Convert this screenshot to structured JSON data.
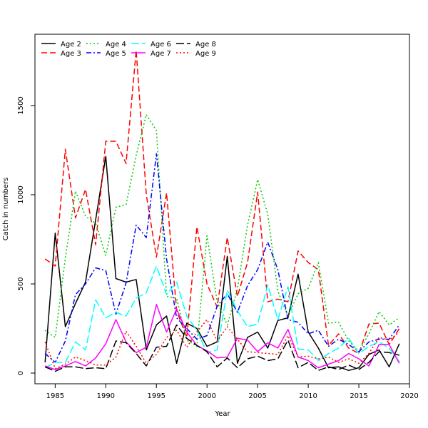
{
  "chart_data": {
    "type": "line",
    "xlabel": "Year",
    "ylabel": "Catch in numbers",
    "xlim": [
      1983,
      2020
    ],
    "ylim": [
      -60,
      1900
    ],
    "xticks": [
      1985,
      1990,
      1995,
      2000,
      2005,
      2010,
      2015,
      2020
    ],
    "yticks": [
      0,
      500,
      1000,
      1500
    ],
    "legend_position": "top-left",
    "x": [
      1984,
      1985,
      1986,
      1987,
      1988,
      1989,
      1990,
      1991,
      1992,
      1993,
      1994,
      1995,
      1996,
      1997,
      1998,
      1999,
      2000,
      2001,
      2002,
      2003,
      2004,
      2005,
      2006,
      2007,
      2008,
      2009,
      2010,
      2011,
      2012,
      2013,
      2014,
      2015,
      2016,
      2017,
      2018,
      2019
    ],
    "series": [
      {
        "name": "Age 2",
        "color": "#000000",
        "dash": "solid",
        "values": [
          60,
          785,
          260,
          390,
          510,
          860,
          1215,
          530,
          510,
          525,
          130,
          270,
          320,
          55,
          280,
          250,
          150,
          175,
          655,
          55,
          200,
          230,
          140,
          295,
          310,
          555,
          230,
          140,
          30,
          35,
          15,
          30,
          105,
          130,
          35,
          165
        ]
      },
      {
        "name": "Age 3",
        "color": "#ff0000",
        "dash": "dashed",
        "values": [
          640,
          600,
          1255,
          870,
          1030,
          720,
          1300,
          1300,
          1175,
          1810,
          1000,
          650,
          1010,
          350,
          200,
          820,
          500,
          370,
          760,
          430,
          620,
          1015,
          400,
          415,
          400,
          685,
          620,
          580,
          155,
          220,
          140,
          110,
          275,
          280,
          160,
          250
        ]
      },
      {
        "name": "Age 4",
        "color": "#00cc00",
        "dash": "dotted",
        "values": [
          240,
          200,
          645,
          1020,
          880,
          840,
          660,
          930,
          945,
          1220,
          1450,
          1360,
          430,
          420,
          185,
          150,
          770,
          400,
          270,
          470,
          830,
          1085,
          890,
          460,
          320,
          445,
          475,
          620,
          280,
          285,
          180,
          120,
          220,
          345,
          270,
          310
        ]
      },
      {
        "name": "Age 5",
        "color": "#0000ff",
        "dash": "dashdot",
        "values": [
          110,
          60,
          180,
          440,
          500,
          590,
          575,
          330,
          505,
          830,
          760,
          1230,
          640,
          310,
          250,
          190,
          210,
          375,
          445,
          340,
          490,
          580,
          735,
          580,
          300,
          285,
          220,
          240,
          150,
          190,
          160,
          120,
          175,
          190,
          190,
          270
        ]
      },
      {
        "name": "Age 6",
        "color": "#00ffff",
        "dash": "longdash",
        "values": [
          30,
          60,
          60,
          175,
          130,
          410,
          310,
          340,
          320,
          420,
          450,
          600,
          440,
          510,
          320,
          240,
          115,
          130,
          465,
          350,
          260,
          275,
          495,
          300,
          485,
          135,
          130,
          70,
          110,
          140,
          195,
          110,
          150,
          175,
          140,
          65
        ]
      },
      {
        "name": "Age 7",
        "color": "#ff00ff",
        "dash": "solid",
        "values": [
          40,
          20,
          40,
          65,
          40,
          85,
          165,
          300,
          175,
          115,
          145,
          385,
          230,
          360,
          230,
          155,
          125,
          85,
          90,
          195,
          185,
          120,
          170,
          140,
          245,
          90,
          70,
          30,
          50,
          70,
          110,
          80,
          40,
          160,
          160,
          55
        ]
      },
      {
        "name": "Age 8",
        "color": "#000000",
        "dash": "longdash",
        "values": [
          35,
          10,
          35,
          35,
          25,
          30,
          25,
          180,
          170,
          110,
          40,
          145,
          150,
          270,
          195,
          155,
          120,
          35,
          85,
          30,
          80,
          95,
          70,
          80,
          185,
          30,
          60,
          15,
          35,
          20,
          45,
          20,
          60,
          120,
          115,
          100
        ]
      },
      {
        "name": "Age 9",
        "color": "#ff0000",
        "dash": "dotted",
        "values": [
          175,
          25,
          50,
          90,
          70,
          45,
          45,
          90,
          235,
          150,
          55,
          105,
          200,
          240,
          145,
          230,
          300,
          180,
          260,
          190,
          120,
          115,
          110,
          105,
          210,
          90,
          95,
          80,
          90,
          60,
          80,
          55,
          110,
          200,
          185,
          230
        ]
      }
    ]
  }
}
